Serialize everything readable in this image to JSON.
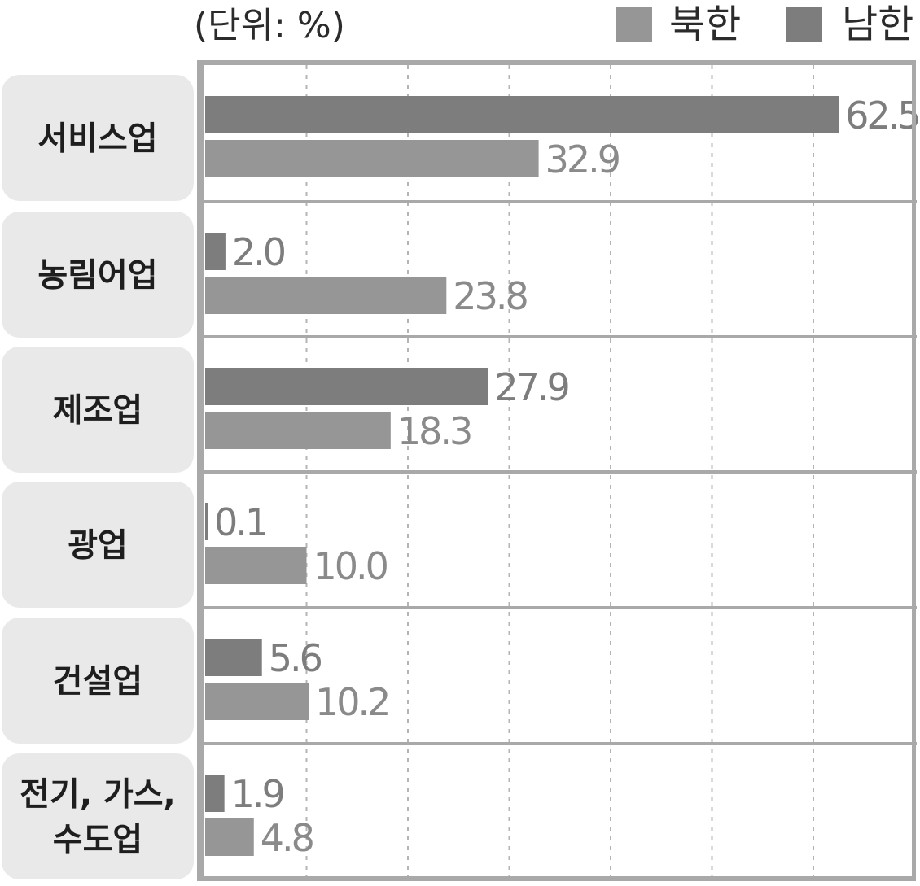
{
  "chart_data": {
    "type": "bar",
    "orientation": "horizontal",
    "title": "",
    "unit_label": "(단위: %)",
    "xlabel": "",
    "ylabel": "",
    "xlim": [
      0,
      70
    ],
    "grid": true,
    "legend_position": "top-right",
    "categories": [
      [
        "서비스업"
      ],
      [
        "농림어업"
      ],
      [
        "제조업"
      ],
      [
        "광업"
      ],
      [
        "건설업"
      ],
      [
        "전기, 가스,",
        "수도업"
      ]
    ],
    "series": [
      {
        "name": "남한",
        "color": "#7d7d7d",
        "values": [
          62.5,
          2.0,
          27.9,
          0.1,
          5.6,
          1.9
        ],
        "labels": [
          "62.5",
          "2.0",
          "27.9",
          "0.1",
          "5.6",
          "1.9"
        ]
      },
      {
        "name": "북한",
        "color": "#969696",
        "values": [
          32.9,
          23.8,
          18.3,
          10.0,
          10.2,
          4.8
        ],
        "labels": [
          "32.9",
          "23.8",
          "18.3",
          "10.0",
          "10.2",
          "4.8"
        ]
      }
    ],
    "legend_order": [
      "북한",
      "남한"
    ]
  }
}
